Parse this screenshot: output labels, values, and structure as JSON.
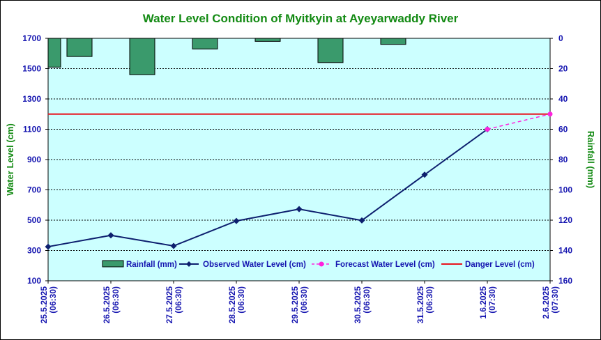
{
  "chart_data": {
    "type": "line",
    "title": "Water Level Condition of Myitkyin at Ayeyarwaddy River",
    "ylabel": "Water Level (cm)",
    "y2label": "Rainfall (mm)",
    "ylim": [
      100,
      1700
    ],
    "yticks": [
      "1700",
      "1500",
      "1300",
      "1100",
      "900",
      "700",
      "500",
      "300",
      "100"
    ],
    "y2lim": [
      0,
      160
    ],
    "y2_inverted": true,
    "y2ticks": [
      "0",
      "20",
      "40",
      "60",
      "80",
      "100",
      "120",
      "140",
      "160"
    ],
    "categories": [
      [
        "25.5.2025",
        "(06:30)"
      ],
      [
        "26.5.2025",
        "(06:30)"
      ],
      [
        "27.5.2025",
        "(06:30)"
      ],
      [
        "28.5.2025",
        "(06:30)"
      ],
      [
        "29.5.2025",
        "(06:30)"
      ],
      [
        "30.5.2025",
        "(06:30)"
      ],
      [
        "31.5.2025",
        "(06:30)"
      ],
      [
        "1.6.2025",
        "(07:30)"
      ],
      [
        "2.6.2025",
        "(07:30)"
      ]
    ],
    "series": [
      {
        "name": "Rainfall (mm)",
        "type": "bar",
        "axis": "y2",
        "color": "#3a9a6c",
        "values": [
          19,
          12,
          24,
          7,
          2,
          16,
          4,
          null,
          null
        ]
      },
      {
        "name": "Observed Water Level (cm)",
        "type": "line",
        "color": "#0d1f6e",
        "marker": "diamond",
        "values": [
          325,
          400,
          330,
          495,
          573,
          498,
          800,
          1100,
          null
        ]
      },
      {
        "name": "Forecast Water Level (cm)",
        "type": "line",
        "dashed": true,
        "color": "#ff22dd",
        "marker": "circle",
        "values": [
          null,
          null,
          null,
          null,
          null,
          null,
          null,
          1100,
          1200
        ]
      },
      {
        "name": "Danger Level (cm)",
        "type": "hline",
        "color": "#e8141e",
        "value": 1200
      }
    ],
    "grid": true,
    "legend_position": "bottom-inside",
    "plot_background": "#ccffff"
  }
}
